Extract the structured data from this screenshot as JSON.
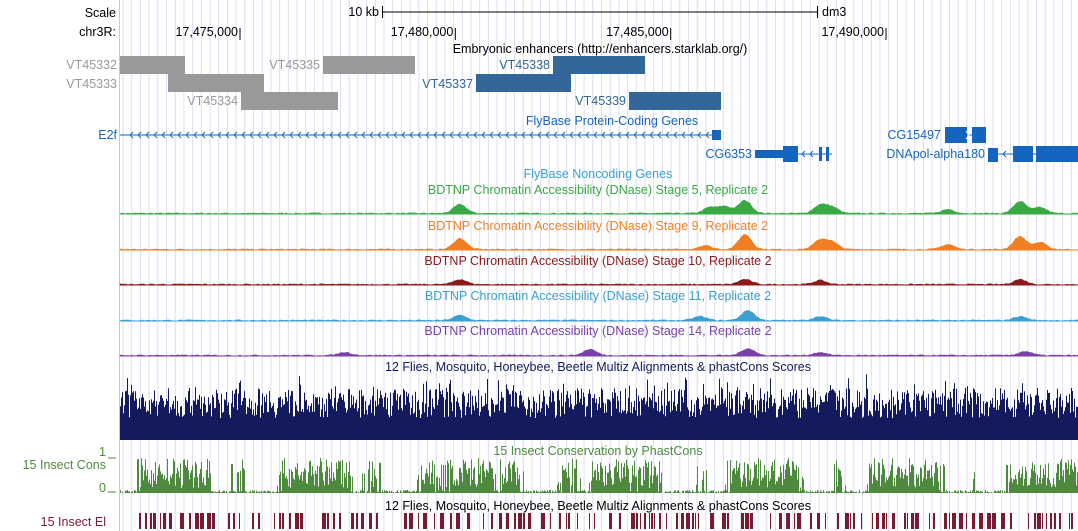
{
  "ruler": {
    "scale_label": "Scale",
    "scale_bar_label": "10 kb",
    "assembly": "dm3",
    "chrom_label": "chr3R:",
    "ticks": [
      {
        "pos": 17475000,
        "label": "17,475,000"
      },
      {
        "pos": 17480000,
        "label": "17,480,000"
      },
      {
        "pos": 17485000,
        "label": "17,485,000"
      },
      {
        "pos": 17490000,
        "label": "17,490,000"
      }
    ]
  },
  "tracks": {
    "enhancers": {
      "title": "Embryonic enhancers (http://enhancers.starklab.org/)",
      "items": [
        {
          "name": "VT45332",
          "color": "#999999"
        },
        {
          "name": "VT45333",
          "color": "#999999"
        },
        {
          "name": "VT45335",
          "color": "#999999"
        },
        {
          "name": "VT45334",
          "color": "#999999"
        },
        {
          "name": "VT45338",
          "color": "#336699"
        },
        {
          "name": "VT45337",
          "color": "#336699"
        },
        {
          "name": "VT45339",
          "color": "#336699"
        }
      ]
    },
    "coding_genes": {
      "title": "FlyBase Protein-Coding Genes",
      "genes": [
        {
          "name": "E2f",
          "strand": "-"
        },
        {
          "name": "CG6353",
          "strand": "-"
        },
        {
          "name": "CG15497",
          "strand": "+"
        },
        {
          "name": "DNApol-alpha180",
          "strand": "-"
        }
      ],
      "color": "#1565c0"
    },
    "noncoding": {
      "title": "FlyBase Noncoding Genes"
    },
    "dnase": [
      {
        "title": "BDTNP Chromatin Accessibility (DNase) Stage 5, Replicate 2",
        "color": "#3aa845"
      },
      {
        "title": "BDTNP Chromatin Accessibility (DNase) Stage 9, Replicate 2",
        "color": "#f07f23"
      },
      {
        "title": "BDTNP Chromatin Accessibility (DNase) Stage 10, Replicate 2",
        "color": "#8b1a1a"
      },
      {
        "title": "BDTNP Chromatin Accessibility (DNase) Stage 11, Replicate 2",
        "color": "#3b9fd0"
      },
      {
        "title": "BDTNP Chromatin Accessibility (DNase) Stage 14, Replicate 2",
        "color": "#7a3fa8"
      }
    ],
    "multiz": {
      "title": "12 Flies, Mosquito, Honeybee, Beetle Multiz Alignments & phastCons Scores",
      "color": "#141a5e"
    },
    "cons": {
      "title": "15 Insect Conservation by PhastCons",
      "left_label": "15 Insect Cons",
      "ymax": "1",
      "ymin": "0",
      "color": "#4e8a3e"
    },
    "elements": {
      "title": "12 Flies, Mosquito, Honeybee, Beetle Multiz Alignments & phastCons Scores",
      "left_label": "15 Insect El",
      "color": "#7a1a30"
    }
  }
}
